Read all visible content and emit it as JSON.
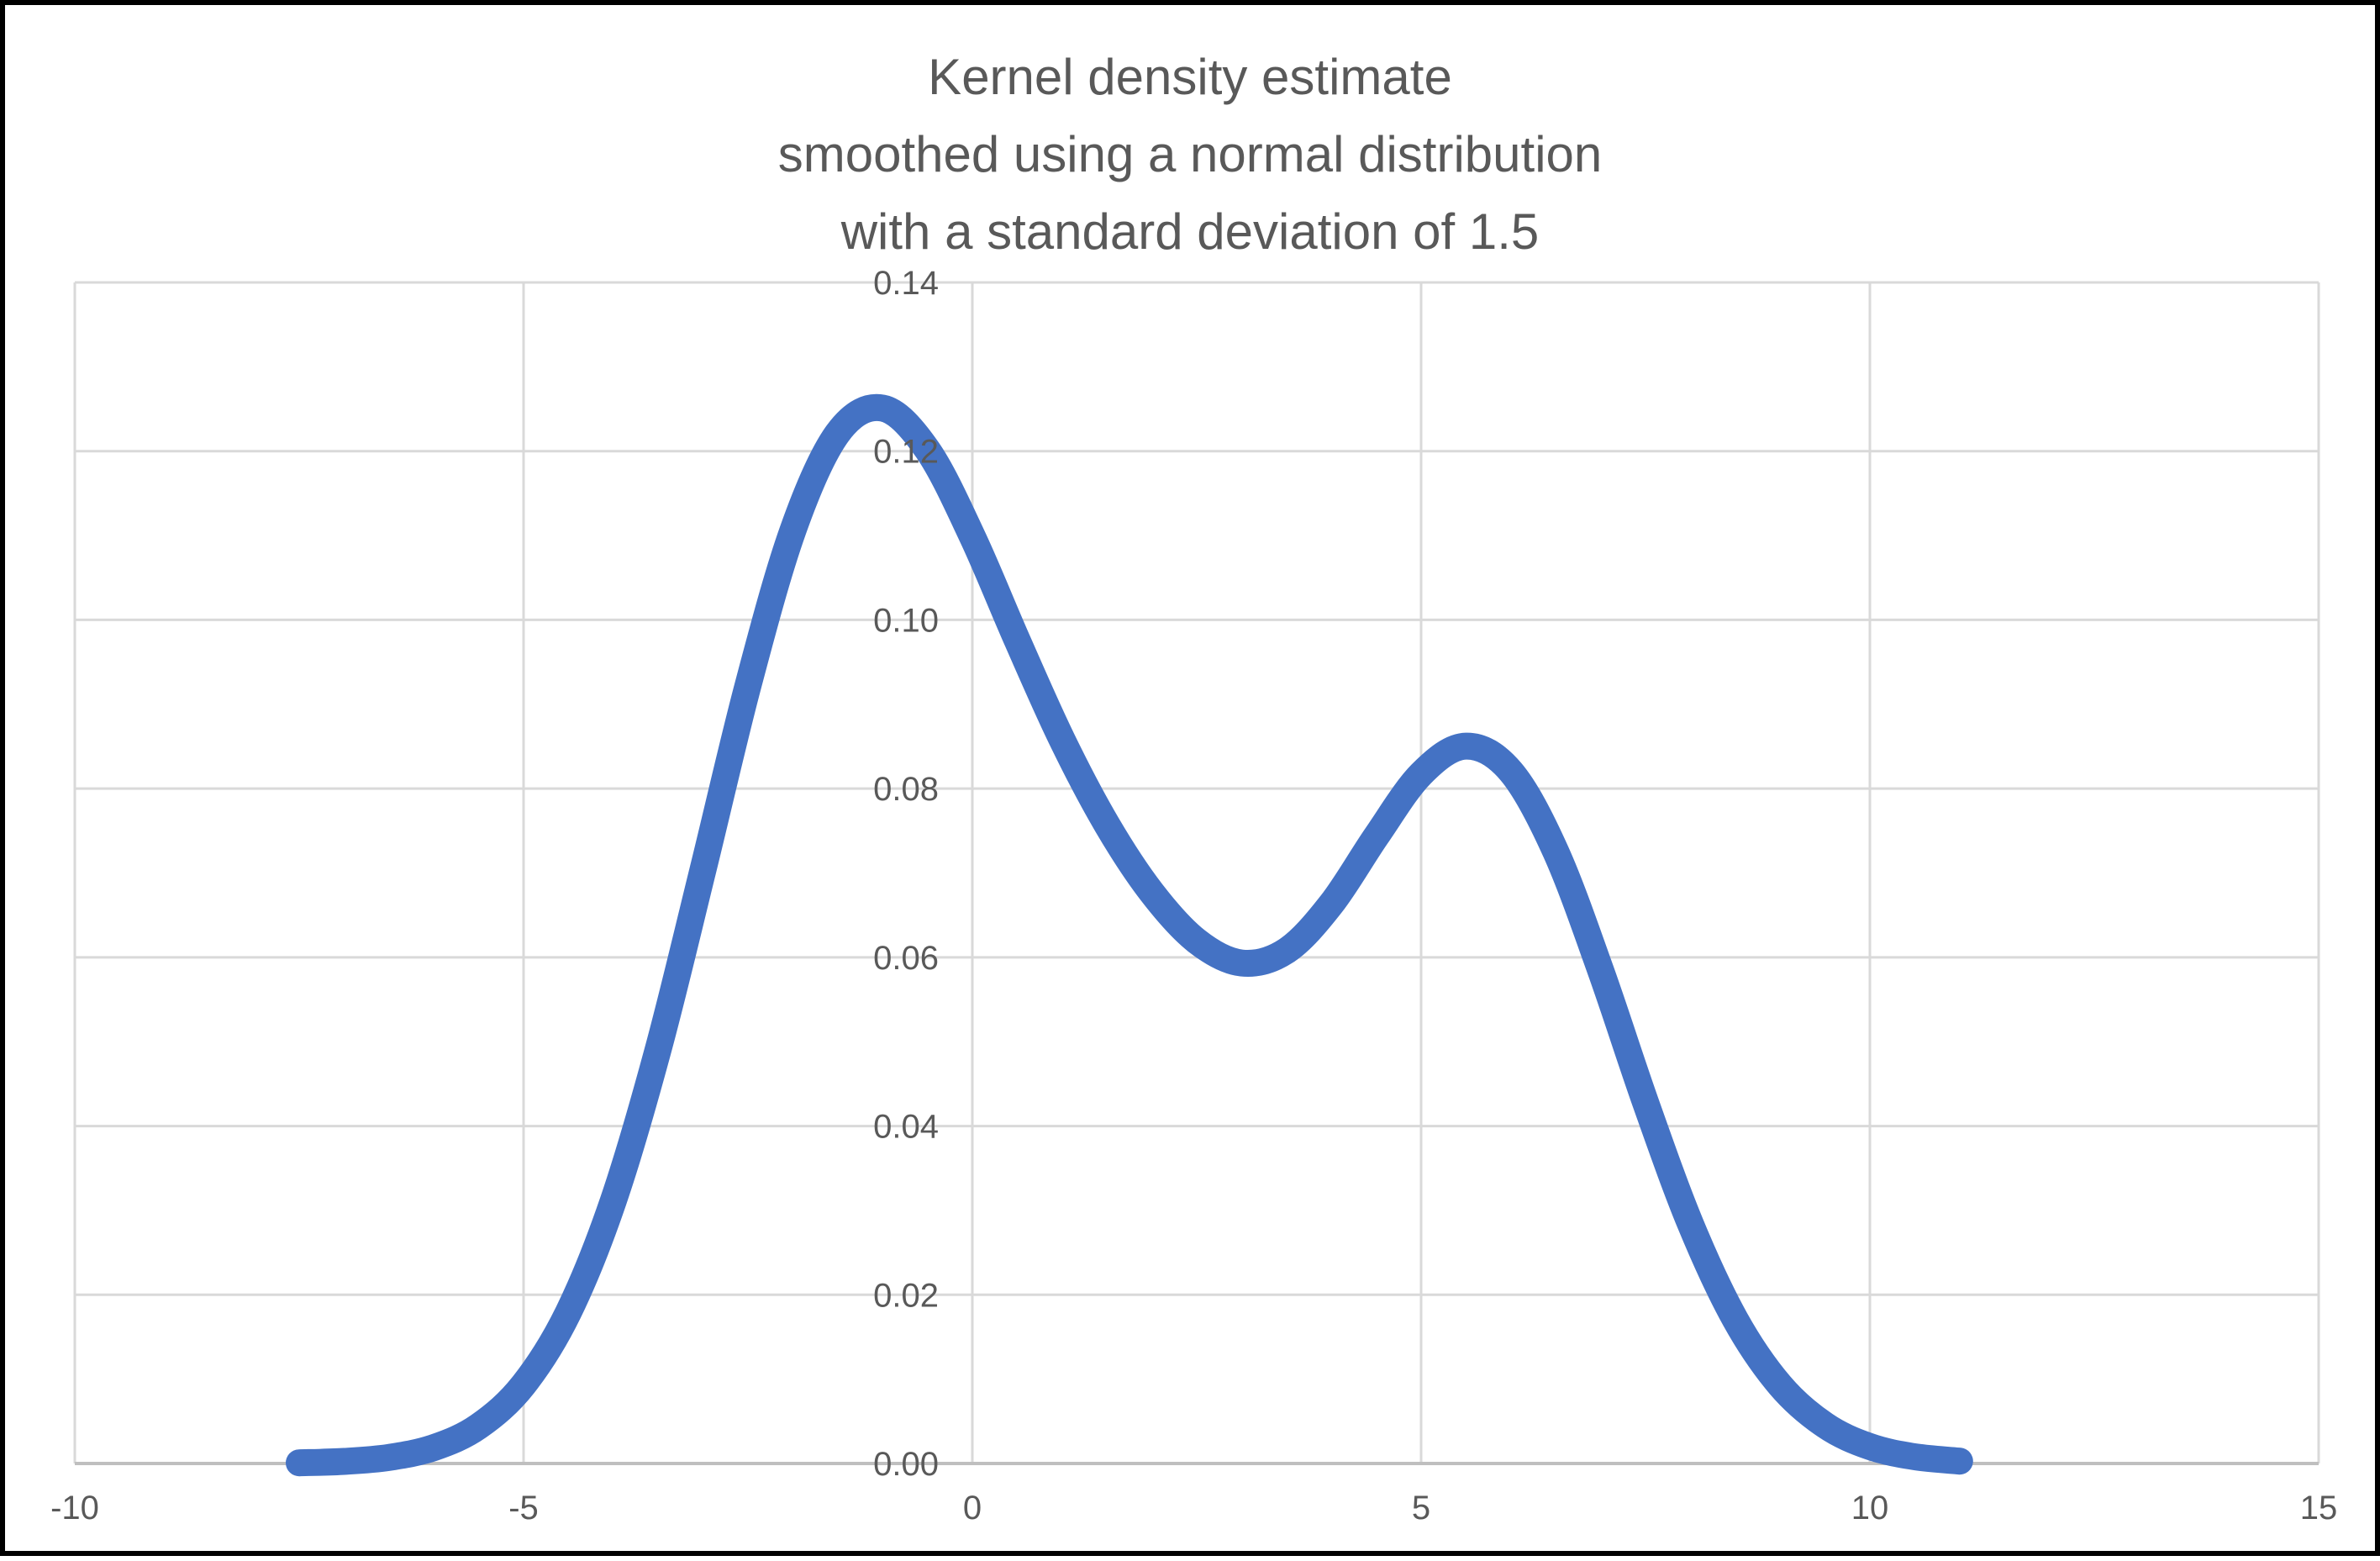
{
  "frame": {
    "border_color": "#000000",
    "background": "#ffffff"
  },
  "title": {
    "lines": [
      "Kernel density estimate",
      "smoothed using a normal distribution",
      "with a standard deviation of 1.5"
    ],
    "color": "#595959"
  },
  "chart_data": {
    "type": "line",
    "title": "Kernel density estimate smoothed using a normal distribution with a standard deviation of 1.5",
    "xlabel": "",
    "ylabel": "",
    "xlim": [
      -10,
      15
    ],
    "ylim": [
      0,
      0.14
    ],
    "x_ticks": [
      -10,
      -5,
      0,
      5,
      10,
      15
    ],
    "x_tick_labels": [
      "-10",
      "-5",
      "0",
      "5",
      "10",
      "15"
    ],
    "y_ticks": [
      0,
      0.02,
      0.04,
      0.06,
      0.08,
      0.1,
      0.12,
      0.14
    ],
    "y_tick_labels": [
      "0.00",
      "0.02",
      "0.04",
      "0.06",
      "0.08",
      "0.10",
      "0.12",
      "0.14"
    ],
    "grid": true,
    "legend": "none",
    "gridline_color": "#D9D9D9",
    "axis_line_color": "#BFBFBF",
    "tick_label_color": "#595959",
    "series": [
      {
        "name": "Kernel density estimate",
        "color": "#4472C4",
        "stroke_width": 32,
        "points": [
          [
            -7.5,
            8e-05
          ],
          [
            -7.0,
            0.00025
          ],
          [
            -6.5,
            0.00072
          ],
          [
            -6.0,
            0.00188
          ],
          [
            -5.5,
            0.00441
          ],
          [
            -5.0,
            0.00935
          ],
          [
            -4.5,
            0.01794
          ],
          [
            -4.0,
            0.03115
          ],
          [
            -3.5,
            0.0491
          ],
          [
            -3.0,
            0.07043
          ],
          [
            -2.5,
            0.0922
          ],
          [
            -2.0,
            0.11059
          ],
          [
            -1.5,
            0.12213
          ],
          [
            -1.0,
            0.1251
          ],
          [
            -0.5,
            0.12015
          ],
          [
            0.0,
            0.10988
          ],
          [
            0.5,
            0.09758
          ],
          [
            1.0,
            0.08579
          ],
          [
            1.5,
            0.07572
          ],
          [
            2.0,
            0.06767
          ],
          [
            2.5,
            0.06193
          ],
          [
            3.0,
            0.05933
          ],
          [
            3.5,
            0.06078
          ],
          [
            4.0,
            0.06633
          ],
          [
            4.5,
            0.07435
          ],
          [
            5.0,
            0.08173
          ],
          [
            5.5,
            0.08504
          ],
          [
            6.0,
            0.08202
          ],
          [
            6.5,
            0.07253
          ],
          [
            7.0,
            0.05846
          ],
          [
            7.5,
            0.04282
          ],
          [
            8.0,
            0.02843
          ],
          [
            8.5,
            0.01708
          ],
          [
            9.0,
            0.00927
          ],
          [
            9.5,
            0.00454
          ],
          [
            10.0,
            0.002
          ],
          [
            10.5,
            0.0008
          ],
          [
            11.0,
            0.00028
          ]
        ]
      }
    ]
  }
}
